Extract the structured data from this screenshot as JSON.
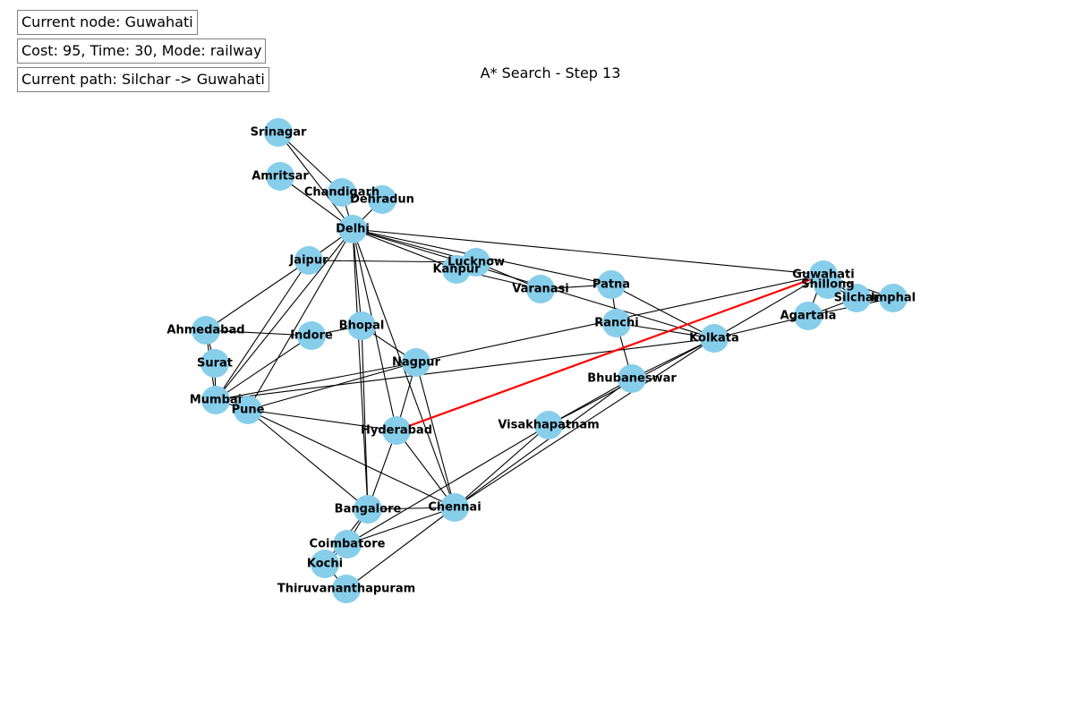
{
  "status": {
    "current_node": "Current node: Guwahati",
    "cost_time_mode": "Cost: 95, Time: 30, Mode: railway",
    "current_path": "Current path: Silchar -> Guwahati"
  },
  "title": "A* Search - Step 13",
  "colors": {
    "node": "#87ceeb",
    "edge": "#000000",
    "highlight": "#ff0000",
    "box_border": "#7f7f7f"
  },
  "nodes": [
    {
      "id": "Srinagar",
      "label": "Srinagar"
    },
    {
      "id": "Amritsar",
      "label": "Amritsar"
    },
    {
      "id": "Chandigarh",
      "label": "Chandigarh"
    },
    {
      "id": "Dehradun",
      "label": "Dehradun"
    },
    {
      "id": "Delhi",
      "label": "Delhi"
    },
    {
      "id": "Jaipur",
      "label": "Jaipur"
    },
    {
      "id": "Lucknow",
      "label": "Lucknow"
    },
    {
      "id": "Kanpur",
      "label": "Kanpur"
    },
    {
      "id": "Varanasi",
      "label": "Varanasi"
    },
    {
      "id": "Patna",
      "label": "Patna"
    },
    {
      "id": "Guwahati",
      "label": "Guwahati"
    },
    {
      "id": "Shillong",
      "label": "Shillong"
    },
    {
      "id": "Silchar",
      "label": "Silchar"
    },
    {
      "id": "Imphal",
      "label": "Imphal"
    },
    {
      "id": "Agartala",
      "label": "Agartala"
    },
    {
      "id": "Ranchi",
      "label": "Ranchi"
    },
    {
      "id": "Kolkata",
      "label": "Kolkata"
    },
    {
      "id": "Ahmedabad",
      "label": "Ahmedabad"
    },
    {
      "id": "Indore",
      "label": "Indore"
    },
    {
      "id": "Bhopal",
      "label": "Bhopal"
    },
    {
      "id": "Surat",
      "label": "Surat"
    },
    {
      "id": "Nagpur",
      "label": "Nagpur"
    },
    {
      "id": "Bhubaneswar",
      "label": "Bhubaneswar"
    },
    {
      "id": "Mumbai",
      "label": "Mumbai"
    },
    {
      "id": "Pune",
      "label": "Pune"
    },
    {
      "id": "Hyderabad",
      "label": "Hyderabad"
    },
    {
      "id": "Visakhapatnam",
      "label": "Visakhapatnam"
    },
    {
      "id": "Bangalore",
      "label": "Bangalore"
    },
    {
      "id": "Chennai",
      "label": "Chennai"
    },
    {
      "id": "Coimbatore",
      "label": "Coimbatore"
    },
    {
      "id": "Kochi",
      "label": "Kochi"
    },
    {
      "id": "Thiruvananthapuram",
      "label": "Thiruvananthapuram"
    }
  ],
  "edges": [
    [
      "Srinagar",
      "Chandigarh"
    ],
    [
      "Srinagar",
      "Delhi"
    ],
    [
      "Amritsar",
      "Delhi"
    ],
    [
      "Chandigarh",
      "Delhi"
    ],
    [
      "Dehradun",
      "Delhi"
    ],
    [
      "Delhi",
      "Jaipur"
    ],
    [
      "Delhi",
      "Lucknow"
    ],
    [
      "Delhi",
      "Kanpur"
    ],
    [
      "Delhi",
      "Patna"
    ],
    [
      "Delhi",
      "Guwahati"
    ],
    [
      "Delhi",
      "Bhopal"
    ],
    [
      "Delhi",
      "Mumbai"
    ],
    [
      "Delhi",
      "Hyderabad"
    ],
    [
      "Delhi",
      "Bangalore"
    ],
    [
      "Delhi",
      "Chennai"
    ],
    [
      "Delhi",
      "Pune"
    ],
    [
      "Delhi",
      "Kolkata"
    ],
    [
      "Jaipur",
      "Lucknow"
    ],
    [
      "Jaipur",
      "Ahmedabad"
    ],
    [
      "Jaipur",
      "Mumbai"
    ],
    [
      "Lucknow",
      "Kanpur"
    ],
    [
      "Lucknow",
      "Varanasi"
    ],
    [
      "Kanpur",
      "Varanasi"
    ],
    [
      "Varanasi",
      "Patna"
    ],
    [
      "Patna",
      "Kolkata"
    ],
    [
      "Patna",
      "Ranchi"
    ],
    [
      "Ranchi",
      "Kolkata"
    ],
    [
      "Ranchi",
      "Bhubaneswar"
    ],
    [
      "Kolkata",
      "Bhubaneswar"
    ],
    [
      "Kolkata",
      "Guwahati"
    ],
    [
      "Kolkata",
      "Agartala"
    ],
    [
      "Kolkata",
      "Chennai"
    ],
    [
      "Kolkata",
      "Visakhapatnam"
    ],
    [
      "Kolkata",
      "Mumbai"
    ],
    [
      "Guwahati",
      "Shillong"
    ],
    [
      "Guwahati",
      "Silchar"
    ],
    [
      "Guwahati",
      "Imphal"
    ],
    [
      "Guwahati",
      "Agartala"
    ],
    [
      "Guwahati",
      "Nagpur"
    ],
    [
      "Shillong",
      "Silchar"
    ],
    [
      "Silchar",
      "Agartala"
    ],
    [
      "Silchar",
      "Imphal"
    ],
    [
      "Agartala",
      "Imphal"
    ],
    [
      "Ahmedabad",
      "Indore"
    ],
    [
      "Ahmedabad",
      "Surat"
    ],
    [
      "Ahmedabad",
      "Mumbai"
    ],
    [
      "Surat",
      "Mumbai"
    ],
    [
      "Indore",
      "Bhopal"
    ],
    [
      "Indore",
      "Mumbai"
    ],
    [
      "Bhopal",
      "Nagpur"
    ],
    [
      "Bhopal",
      "Bangalore"
    ],
    [
      "Nagpur",
      "Mumbai"
    ],
    [
      "Nagpur",
      "Pune"
    ],
    [
      "Nagpur",
      "Hyderabad"
    ],
    [
      "Nagpur",
      "Chennai"
    ],
    [
      "Mumbai",
      "Pune"
    ],
    [
      "Pune",
      "Hyderabad"
    ],
    [
      "Pune",
      "Bangalore"
    ],
    [
      "Pune",
      "Chennai"
    ],
    [
      "Hyderabad",
      "Bangalore"
    ],
    [
      "Hyderabad",
      "Chennai"
    ],
    [
      "Bhubaneswar",
      "Chennai"
    ],
    [
      "Bhubaneswar",
      "Visakhapatnam"
    ],
    [
      "Visakhapatnam",
      "Chennai"
    ],
    [
      "Visakhapatnam",
      "Coimbatore"
    ],
    [
      "Bangalore",
      "Chennai"
    ],
    [
      "Bangalore",
      "Coimbatore"
    ],
    [
      "Bangalore",
      "Kochi"
    ],
    [
      "Coimbatore",
      "Chennai"
    ],
    [
      "Coimbatore",
      "Kochi"
    ],
    [
      "Kochi",
      "Thiruvananthapuram"
    ],
    [
      "Thiruvananthapuram",
      "Chennai"
    ]
  ],
  "highlighted_edges": [
    [
      "Guwahati",
      "Hyderabad"
    ]
  ]
}
